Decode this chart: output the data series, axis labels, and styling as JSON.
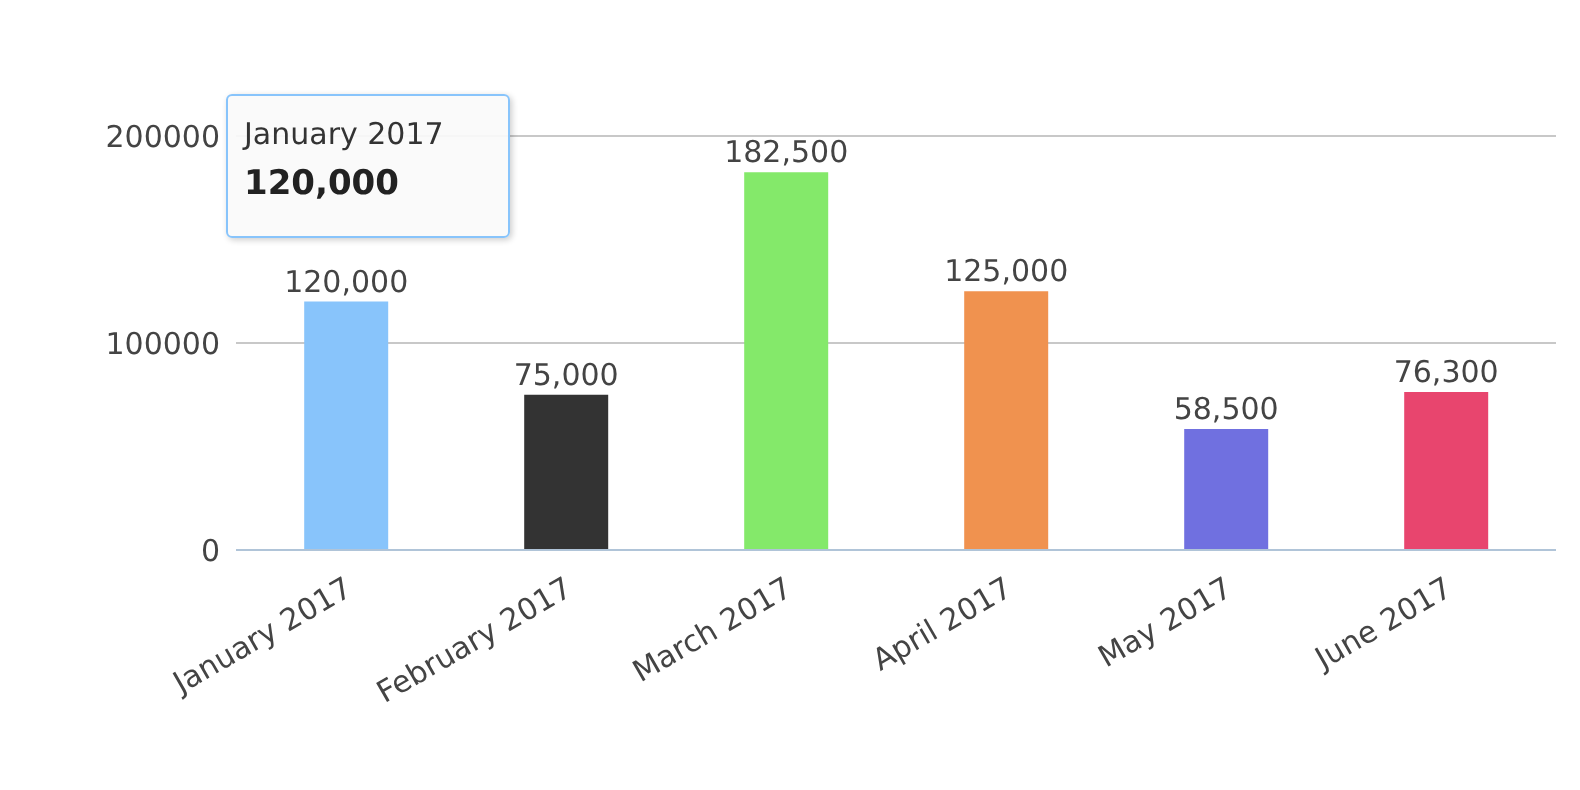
{
  "chart_data": {
    "type": "bar",
    "categories": [
      "January 2017",
      "February 2017",
      "March 2017",
      "April 2017",
      "May 2017",
      "June 2017"
    ],
    "values": [
      120000,
      75000,
      182500,
      125000,
      58500,
      76300
    ],
    "colors": [
      "#88c4fb",
      "#333333",
      "#84e96a",
      "#f0924f",
      "#7070e0",
      "#e8456e"
    ],
    "value_labels": [
      "120,000",
      "75,000",
      "182,500",
      "125,000",
      "58,500",
      "76,300"
    ],
    "ylim": [
      0,
      200000
    ],
    "yticks": [
      0,
      100000,
      200000
    ],
    "grid": "y",
    "legend": false,
    "annotations": [
      {
        "text": "January 2017\n120,000",
        "x": "January 2017",
        "y": 120000
      }
    ]
  }
}
